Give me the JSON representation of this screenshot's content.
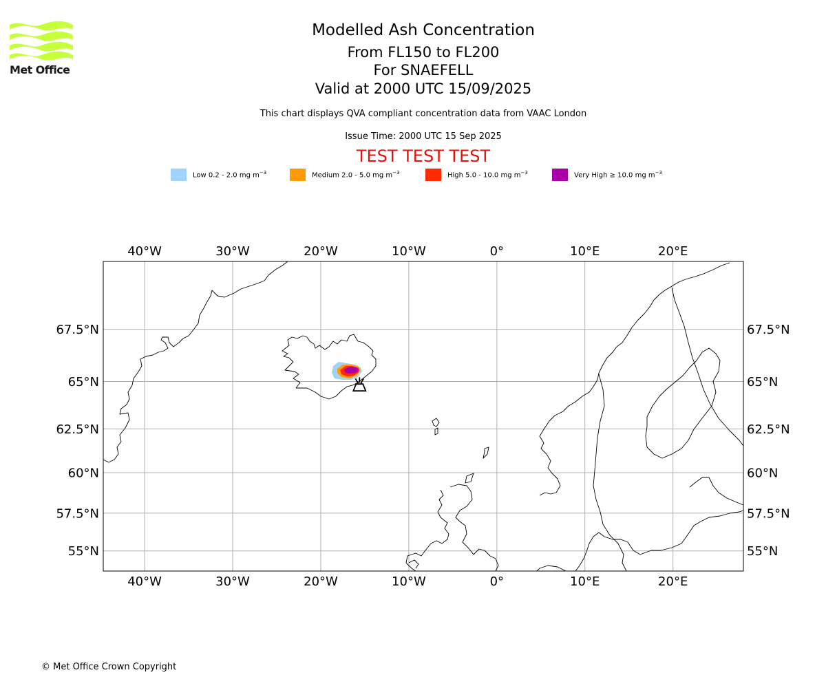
{
  "logo": {
    "text": "Met Office",
    "color": "#c6ff3c"
  },
  "title": {
    "line1": "Modelled Ash Concentration",
    "line2": "From FL150 to FL200",
    "line3": "For SNAEFELL",
    "line4": "Valid at 2000 UTC 15/09/2025"
  },
  "subtitle": "This chart displays QVA compliant concentration data from VAAC London",
  "issue_time": "Issue Time: 2000 UTC 15 Sep 2025",
  "test_banner": "TEST TEST TEST",
  "legend": [
    {
      "label": "Low 0.2 - 2.0 mg m",
      "unit_exp": "−3",
      "color": "#a0d2fa"
    },
    {
      "label": "Medium 2.0 - 5.0 mg m",
      "unit_exp": "−3",
      "color": "#ff9a00"
    },
    {
      "label": "High 5.0 - 10.0 mg m",
      "unit_exp": "−3",
      "color": "#ff2a00"
    },
    {
      "label": "Very High ≥ 10.0 mg m",
      "unit_exp": "−3",
      "color": "#aa00aa"
    }
  ],
  "map": {
    "extent": {
      "lon": [
        -44.7,
        28.0
      ],
      "lat": [
        53.6,
        70.4
      ]
    },
    "lon_ticks": [
      {
        "value": -40,
        "label": "40°W"
      },
      {
        "value": -30,
        "label": "30°W"
      },
      {
        "value": -20,
        "label": "20°W"
      },
      {
        "value": -10,
        "label": "10°W"
      },
      {
        "value": 0,
        "label": "0°"
      },
      {
        "value": 10,
        "label": "10°E"
      },
      {
        "value": 20,
        "label": "20°E"
      }
    ],
    "lat_ticks": [
      {
        "value": 67.5,
        "label": "67.5°N"
      },
      {
        "value": 65,
        "label": "65°N"
      },
      {
        "value": 62.5,
        "label": "62.5°N"
      },
      {
        "value": 60,
        "label": "60°N"
      },
      {
        "value": 57.5,
        "label": "57.5°N"
      },
      {
        "value": 55,
        "label": "55°N"
      }
    ],
    "volcano": {
      "lon": -15.6,
      "lat": 64.8
    }
  },
  "copyright": "© Met Office Crown Copyright"
}
